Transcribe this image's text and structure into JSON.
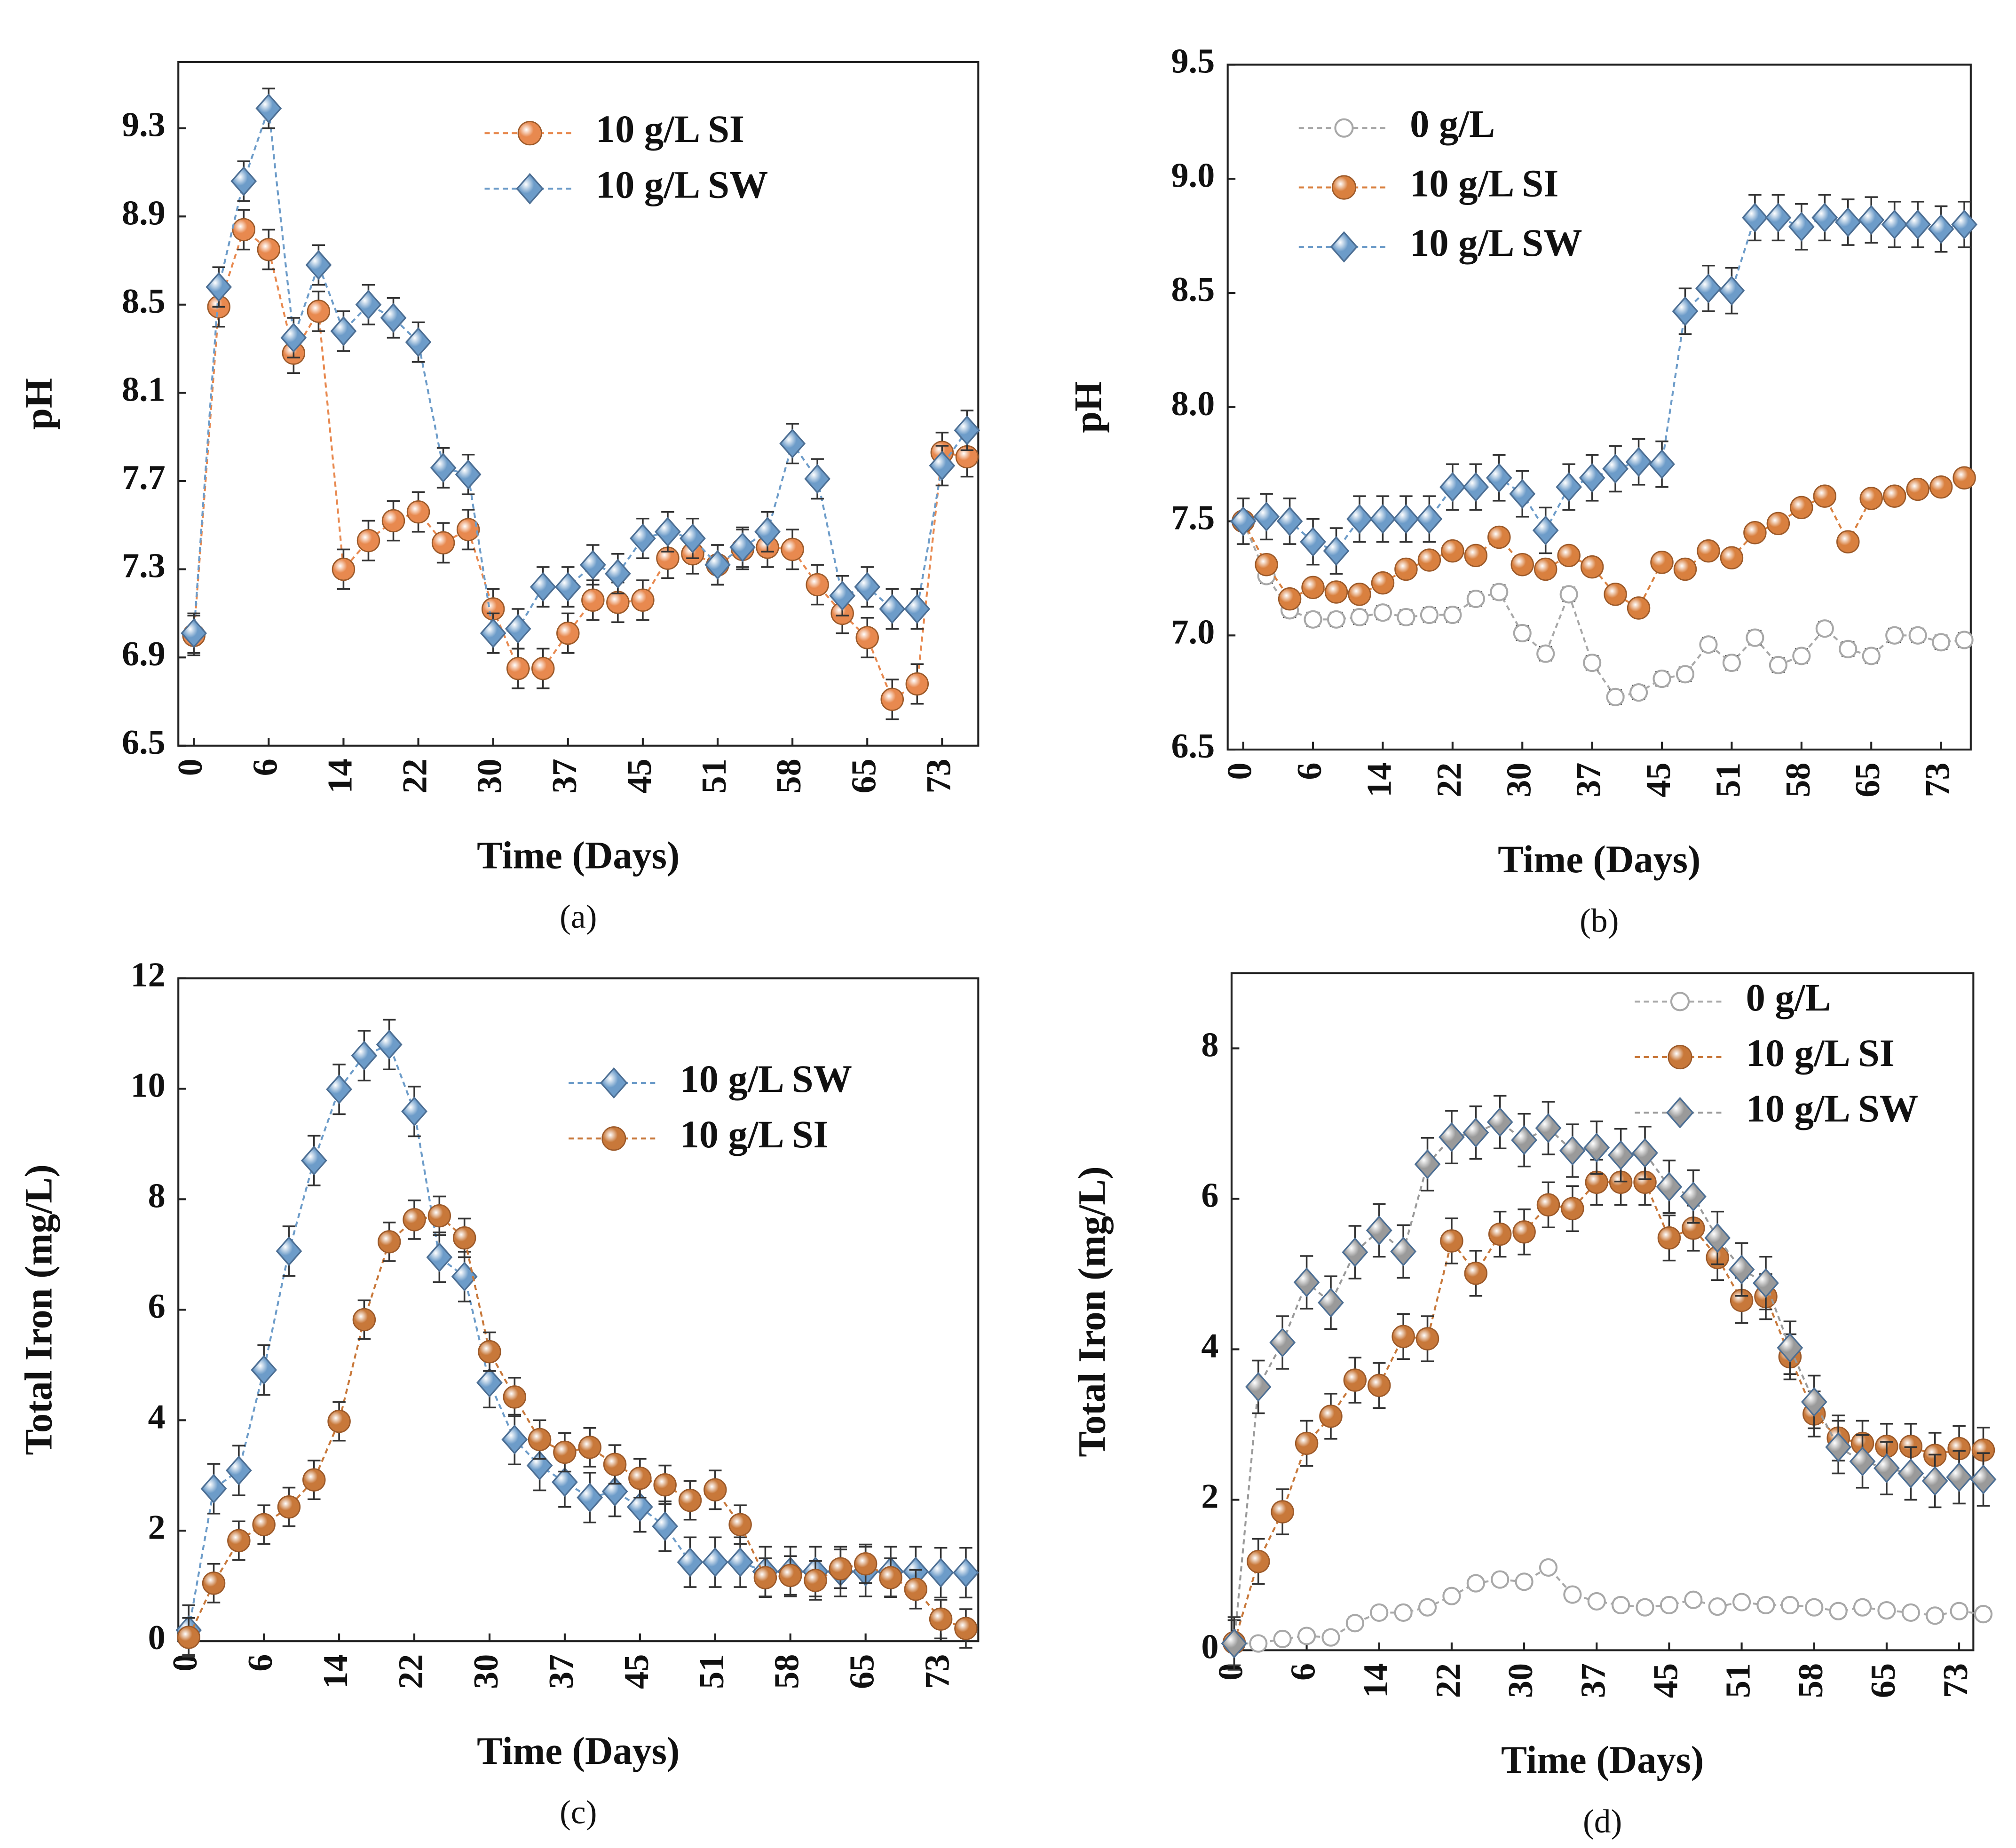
{
  "chart_data": [
    {
      "type": "line",
      "panel_label": "(a)",
      "xlabel": "Time (Days)",
      "ylabel": "pH",
      "categories": [
        "0",
        null,
        null,
        "6",
        null,
        null,
        "14",
        null,
        null,
        "22",
        null,
        null,
        "30",
        null,
        null,
        "37",
        null,
        null,
        "45",
        null,
        null,
        "51",
        null,
        null,
        "58",
        null,
        null,
        "65",
        null,
        null,
        "73",
        null
      ],
      "ylim": [
        6.5,
        9.6
      ],
      "yticks": [
        6.5,
        6.9,
        7.3,
        7.7,
        8.1,
        8.5,
        8.9,
        9.3
      ],
      "series": [
        {
          "name": "10 g/L SI",
          "color": "#e8894f",
          "marker": "circle",
          "error": 0.09,
          "values": [
            7.0,
            8.49,
            8.84,
            8.75,
            8.28,
            8.47,
            7.3,
            7.43,
            7.52,
            7.56,
            7.42,
            7.48,
            7.12,
            6.85,
            6.85,
            7.01,
            7.16,
            7.15,
            7.16,
            7.35,
            7.37,
            7.32,
            7.39,
            7.4,
            7.39,
            7.23,
            7.1,
            6.99,
            6.71,
            6.78,
            7.83,
            7.81
          ]
        },
        {
          "name": "10 g/L SW",
          "color": "#6d9cc9",
          "marker": "diamond",
          "error": 0.09,
          "values": [
            7.01,
            8.58,
            9.06,
            9.39,
            8.35,
            8.68,
            8.38,
            8.5,
            8.44,
            8.33,
            7.76,
            7.73,
            7.01,
            7.03,
            7.22,
            7.22,
            7.32,
            7.28,
            7.44,
            7.47,
            7.44,
            7.32,
            7.4,
            7.47,
            7.87,
            7.71,
            7.18,
            7.22,
            7.12,
            7.12,
            7.77,
            7.93
          ]
        }
      ]
    },
    {
      "type": "line",
      "panel_label": "(b)",
      "xlabel": "Time (Days)",
      "ylabel": "pH",
      "categories": [
        "0",
        null,
        null,
        "6",
        null,
        null,
        "14",
        null,
        null,
        "22",
        null,
        null,
        "30",
        null,
        null,
        "37",
        null,
        null,
        "45",
        null,
        null,
        "51",
        null,
        null,
        "58",
        null,
        null,
        "65",
        null,
        null,
        "73",
        null
      ],
      "ylim": [
        6.5,
        9.5
      ],
      "yticks": [
        6.5,
        {
          "value": 7,
          "label": "7.0"
        },
        7.5,
        {
          "value": 8,
          "label": "8.0"
        },
        8.5,
        {
          "value": 9,
          "label": "9.0"
        },
        9.5
      ],
      "series": [
        {
          "name": "0 g/L",
          "color": "#a8a8a8",
          "marker": "open-circle",
          "error": 0.03,
          "values": [
            7.5,
            7.26,
            7.11,
            7.07,
            7.07,
            7.08,
            7.1,
            7.08,
            7.09,
            7.09,
            7.16,
            7.19,
            7.01,
            6.92,
            7.18,
            6.88,
            6.73,
            6.75,
            6.81,
            6.83,
            6.96,
            6.88,
            6.99,
            6.87,
            6.91,
            7.03,
            6.94,
            6.91,
            7.0,
            7.0,
            6.97,
            6.98
          ]
        },
        {
          "name": "10 g/L SI",
          "color": "#d9803f",
          "marker": "circle",
          "error": 0.02,
          "values": [
            7.5,
            7.31,
            7.16,
            7.21,
            7.19,
            7.18,
            7.23,
            7.29,
            7.33,
            7.37,
            7.35,
            7.43,
            7.31,
            7.29,
            7.35,
            7.3,
            7.18,
            7.12,
            7.32,
            7.29,
            7.37,
            7.34,
            7.45,
            7.49,
            7.56,
            7.61,
            7.41,
            7.6,
            7.61,
            7.64,
            7.65,
            7.69
          ]
        },
        {
          "name": "10 g/L SW",
          "color": "#6d9cc9",
          "marker": "diamond",
          "error": 0.1,
          "values": [
            7.5,
            7.52,
            7.5,
            7.41,
            7.37,
            7.51,
            7.51,
            7.51,
            7.51,
            7.65,
            7.65,
            7.69,
            7.62,
            7.46,
            7.65,
            7.69,
            7.73,
            7.76,
            7.75,
            8.42,
            8.52,
            8.51,
            8.83,
            8.83,
            8.79,
            8.83,
            8.81,
            8.82,
            8.8,
            8.8,
            8.78,
            8.8
          ]
        }
      ]
    },
    {
      "type": "line",
      "panel_label": "(c)",
      "xlabel": "Time (Days)",
      "ylabel": "Total Iron (mg/L)",
      "categories": [
        "0",
        null,
        null,
        "6",
        null,
        null,
        "14",
        null,
        null,
        "22",
        null,
        null,
        "30",
        null,
        null,
        "37",
        null,
        null,
        "45",
        null,
        null,
        "51",
        null,
        null,
        "58",
        null,
        null,
        "65",
        null,
        null,
        "73",
        null
      ],
      "ylim": [
        0,
        12
      ],
      "yticks": [
        0,
        2,
        4,
        6,
        8,
        10,
        12
      ],
      "series": [
        {
          "name": "10 g/L SW",
          "color": "#6d9cc9",
          "marker": "diamond",
          "error": 0.45,
          "values": [
            0.2,
            2.76,
            3.09,
            4.91,
            7.06,
            8.7,
            9.99,
            10.6,
            10.8,
            9.59,
            6.95,
            6.6,
            4.68,
            3.65,
            3.18,
            2.88,
            2.6,
            2.71,
            2.43,
            2.08,
            1.43,
            1.43,
            1.43,
            1.26,
            1.26,
            1.26,
            1.26,
            1.26,
            1.26,
            1.26,
            1.24,
            1.24
          ]
        },
        {
          "name": "10 g/L SI",
          "color": "#c8783a",
          "marker": "circle",
          "error": 0.35,
          "values": [
            0.07,
            1.05,
            1.82,
            2.11,
            2.43,
            2.92,
            3.98,
            5.82,
            7.23,
            7.63,
            7.7,
            7.3,
            5.24,
            4.42,
            3.65,
            3.42,
            3.51,
            3.2,
            2.95,
            2.83,
            2.55,
            2.74,
            2.11,
            1.15,
            1.19,
            1.1,
            1.31,
            1.4,
            1.15,
            0.94,
            0.4,
            0.23
          ]
        }
      ]
    },
    {
      "type": "line",
      "panel_label": "(d)",
      "xlabel": "Time (Days)",
      "ylabel": "Total Iron (mg/L)",
      "categories": [
        "0",
        null,
        null,
        "6",
        null,
        null,
        "14",
        null,
        null,
        "22",
        null,
        null,
        "30",
        null,
        null,
        "37",
        null,
        null,
        "45",
        null,
        null,
        "51",
        null,
        null,
        "58",
        null,
        null,
        "65",
        null,
        null,
        "73",
        null
      ],
      "ylim": [
        0,
        9
      ],
      "yticks": [
        0,
        2,
        4,
        6,
        8
      ],
      "series": [
        {
          "name": "0 g/L",
          "color": "#a8a8a8",
          "marker": "open-circle",
          "error": 0.08,
          "values": [
            0.09,
            0.09,
            0.15,
            0.19,
            0.17,
            0.36,
            0.5,
            0.5,
            0.57,
            0.72,
            0.89,
            0.94,
            0.91,
            1.1,
            0.74,
            0.65,
            0.6,
            0.57,
            0.6,
            0.67,
            0.58,
            0.64,
            0.6,
            0.6,
            0.57,
            0.52,
            0.57,
            0.53,
            0.5,
            0.46,
            0.52,
            0.48
          ]
        },
        {
          "name": "10 g/L SI",
          "color": "#c8783a",
          "marker": "circle",
          "error": 0.3,
          "values": [
            0.1,
            1.18,
            1.84,
            2.75,
            3.11,
            3.59,
            3.52,
            4.17,
            4.14,
            5.44,
            5.01,
            5.53,
            5.56,
            5.92,
            5.87,
            6.22,
            6.22,
            6.22,
            5.48,
            5.61,
            5.22,
            4.65,
            4.7,
            3.9,
            3.14,
            2.82,
            2.75,
            2.71,
            2.71,
            2.59,
            2.68,
            2.66
          ]
        },
        {
          "name": "10 g/L SW",
          "color": "#9a9a9a",
          "marker": "diamond",
          "error": 0.35,
          "values": [
            0.09,
            3.5,
            4.09,
            4.89,
            4.62,
            5.29,
            5.58,
            5.3,
            6.46,
            6.82,
            6.88,
            7.02,
            6.78,
            6.94,
            6.64,
            6.68,
            6.58,
            6.61,
            6.16,
            6.03,
            5.48,
            5.06,
            4.88,
            4.02,
            3.3,
            2.7,
            2.51,
            2.42,
            2.35,
            2.25,
            2.3,
            2.27
          ]
        }
      ]
    }
  ]
}
